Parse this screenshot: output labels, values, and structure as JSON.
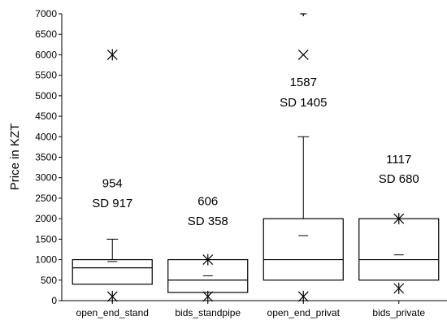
{
  "chart_data": {
    "type": "box",
    "ylabel": "Price in KZT",
    "ylim": [
      0,
      7000
    ],
    "yticks": [
      0,
      500,
      1000,
      1500,
      2000,
      2500,
      3000,
      3500,
      4000,
      4500,
      5000,
      5500,
      6000,
      6500,
      7000
    ],
    "grid": false,
    "categories": [
      "open_end_stand",
      "bids_standpipe",
      "open_end_privat",
      "bids_private"
    ],
    "boxes": [
      {
        "category": "open_end_stand",
        "q1": 400,
        "median": 800,
        "q3": 1000,
        "whisker_low": 400,
        "whisker_high": 1500,
        "mean": 954,
        "markers": [
          {
            "value": 6000,
            "symbol": "asterisk"
          },
          {
            "value": 100,
            "symbol": "asterisk"
          }
        ],
        "annotation_mean": "954",
        "annotation_sd": "SD 917",
        "annotation_y": [
          2870,
          2380
        ]
      },
      {
        "category": "bids_standpipe",
        "q1": 200,
        "median": 500,
        "q3": 1000,
        "whisker_low": 200,
        "whisker_high": 1000,
        "mean": 606,
        "markers": [
          {
            "value": 1000,
            "symbol": "asterisk"
          },
          {
            "value": 100,
            "symbol": "asterisk"
          }
        ],
        "annotation_mean": "606",
        "annotation_sd": "SD 358",
        "annotation_y": [
          2430,
          1940
        ]
      },
      {
        "category": "open_end_privat",
        "q1": 500,
        "median": 1000,
        "q3": 2000,
        "whisker_low": 500,
        "whisker_high": 4000,
        "mean": 1587,
        "markers": [
          {
            "value": 6000,
            "symbol": "x"
          },
          {
            "value": 7000,
            "symbol": "dash"
          },
          {
            "value": 100,
            "symbol": "asterisk"
          }
        ],
        "annotation_mean": "1587",
        "annotation_sd": "SD 1405",
        "annotation_y": [
          5330,
          4840
        ]
      },
      {
        "category": "bids_private",
        "q1": 500,
        "median": 1000,
        "q3": 2000,
        "whisker_low": 500,
        "whisker_high": 2000,
        "mean": 1117,
        "markers": [
          {
            "value": 2000,
            "symbol": "asterisk"
          },
          {
            "value": 300,
            "symbol": "asterisk"
          }
        ],
        "annotation_mean": "1117",
        "annotation_sd": "SD 680",
        "annotation_y": [
          3450,
          2970
        ]
      }
    ]
  }
}
